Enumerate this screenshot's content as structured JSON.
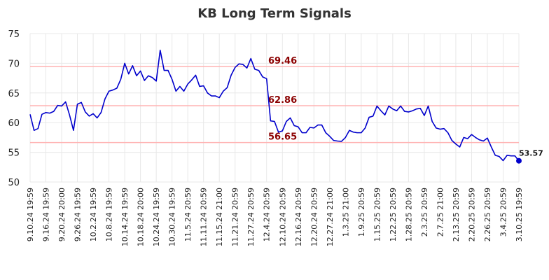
{
  "chart_data": {
    "type": "line",
    "title": "KB Long Term Signals",
    "xlabel": "",
    "ylabel": "",
    "ylim": [
      50,
      75
    ],
    "y_ticks": [
      50,
      55,
      60,
      65,
      70,
      75
    ],
    "grid": true,
    "x_tick_labels": [
      "9.10.24 19:59",
      "9.16.24 19:59",
      "9.20.24 20:00",
      "9.26.24 19:59",
      "10.2.24 19:59",
      "10.8.24 19:59",
      "10.14.24 19:59",
      "10.18.24 20:00",
      "10.24.24 19:59",
      "10.30.24 19:59",
      "11.5.24 20:59",
      "11.11.24 20:59",
      "11.15.24 21:00",
      "11.21.24 20:59",
      "11.27.24 20:59",
      "12.4.24 20:59",
      "12.10.24 20:59",
      "12.16.24 20:59",
      "12.20.24 20:59",
      "12.27.24 21:00",
      "1.3.25 21:00",
      "1.9.25 20:59",
      "1.15.25 20:59",
      "1.22.25 20:59",
      "1.28.25 20:59",
      "2.3.25 20:59",
      "2.7.25 21:00",
      "2.13.25 20:59",
      "2.20.25 20:59",
      "2.26.25 20:59",
      "3.4.25 20:59",
      "3.10.25 19:59"
    ],
    "horizontal_lines": [
      {
        "value": 69.46,
        "label": "69.46",
        "color": "#ffb3b3"
      },
      {
        "value": 62.86,
        "label": "62.86",
        "color": "#ffb3b3"
      },
      {
        "value": 56.65,
        "label": "56.65",
        "color": "#ffb3b3"
      }
    ],
    "series": [
      {
        "color": "#0000cc",
        "values": [
          61.4,
          58.7,
          59.0,
          61.4,
          61.7,
          61.6,
          61.9,
          62.9,
          62.8,
          63.5,
          61.3,
          58.7,
          63.1,
          63.4,
          61.8,
          61.1,
          61.5,
          60.8,
          61.7,
          64.0,
          65.3,
          65.5,
          65.8,
          67.3,
          70.0,
          68.2,
          69.6,
          67.9,
          68.7,
          67.1,
          67.9,
          67.6,
          67.0,
          72.2,
          68.8,
          68.8,
          67.3,
          65.3,
          66.1,
          65.3,
          66.5,
          67.2,
          68.0,
          66.1,
          66.2,
          65.0,
          64.5,
          64.5,
          64.2,
          65.3,
          65.9,
          68.0,
          69.3,
          69.9,
          69.8,
          69.2,
          70.8,
          69.0,
          68.8,
          67.7,
          67.4,
          60.3,
          60.2,
          58.4,
          58.6,
          60.2,
          60.8,
          59.5,
          59.3,
          58.3,
          58.3,
          59.2,
          59.1,
          59.6,
          59.6,
          58.3,
          57.7,
          57.0,
          56.9,
          56.85,
          57.5,
          58.7,
          58.4,
          58.3,
          58.3,
          59.1,
          60.9,
          61.1,
          62.8,
          62.0,
          61.3,
          62.8,
          62.3,
          62.0,
          62.8,
          61.9,
          61.8,
          62.0,
          62.3,
          62.4,
          61.2,
          62.8,
          60.2,
          59.1,
          58.9,
          59.0,
          58.3,
          57.0,
          56.4,
          55.9,
          57.5,
          57.3,
          58.0,
          57.5,
          57.1,
          56.9,
          57.4,
          55.9,
          54.5,
          54.3,
          53.6,
          54.5,
          54.4,
          54.4,
          53.57
        ]
      }
    ],
    "last_value_label": "53.57"
  }
}
